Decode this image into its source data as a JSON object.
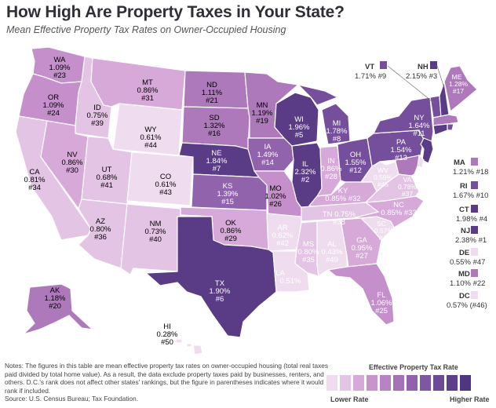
{
  "header": {
    "title": "How High Are Property Taxes in Your State?",
    "subtitle": "Mean Effective Property Tax Rates on Owner-Occupied Housing"
  },
  "colors": {
    "c1": "#efdcee",
    "c2": "#e4c4e4",
    "c3": "#d6a9d8",
    "c4": "#c48fca",
    "c5": "#ad79bb",
    "c6": "#9163ac",
    "c7": "#754f9b",
    "c8": "#5a3b85"
  },
  "states": {
    "WA": {
      "abbr": "WA",
      "rate": "1.09%",
      "rank": "#23",
      "level": 4
    },
    "OR": {
      "abbr": "OR",
      "rate": "1.09%",
      "rank": "#24",
      "level": 4
    },
    "CA": {
      "abbr": "CA",
      "rate": "0.81%",
      "rank": "#34",
      "level": 2
    },
    "ID": {
      "abbr": "ID",
      "rate": "0.75%",
      "rank": "#39",
      "level": 2
    },
    "NV": {
      "abbr": "NV",
      "rate": "0.86%",
      "rank": "#30",
      "level": 3
    },
    "MT": {
      "abbr": "MT",
      "rate": "0.86%",
      "rank": "#31",
      "level": 3
    },
    "WY": {
      "abbr": "WY",
      "rate": "0.61%",
      "rank": "#44",
      "level": 1
    },
    "UT": {
      "abbr": "UT",
      "rate": "0.68%",
      "rank": "#41",
      "level": 2
    },
    "AZ": {
      "abbr": "AZ",
      "rate": "0.80%",
      "rank": "#36",
      "level": 2
    },
    "CO": {
      "abbr": "CO",
      "rate": "0.61%",
      "rank": "#43",
      "level": 1
    },
    "NM": {
      "abbr": "NM",
      "rate": "0.73%",
      "rank": "#40",
      "level": 2
    },
    "ND": {
      "abbr": "ND",
      "rate": "1.11%",
      "rank": "#21",
      "level": 5
    },
    "SD": {
      "abbr": "SD",
      "rate": "1.32%",
      "rank": "#16",
      "level": 5
    },
    "NE": {
      "abbr": "NE",
      "rate": "1.84%",
      "rank": "#7",
      "level": 8
    },
    "KS": {
      "abbr": "KS",
      "rate": "1.39%",
      "rank": "#15",
      "level": 6
    },
    "OK": {
      "abbr": "OK",
      "rate": "0.86%",
      "rank": "#29",
      "level": 3
    },
    "TX": {
      "abbr": "TX",
      "rate": "1.90%",
      "rank": "#6",
      "level": 8
    },
    "MN": {
      "abbr": "MN",
      "rate": "1.19%",
      "rank": "#19",
      "level": 5
    },
    "IA": {
      "abbr": "IA",
      "rate": "1.49%",
      "rank": "#14",
      "level": 6
    },
    "MO": {
      "abbr": "MO",
      "rate": "1.02%",
      "rank": "#26",
      "level": 4
    },
    "AR": {
      "abbr": "AR",
      "rate": "0.62%",
      "rank": "#42",
      "level": 1
    },
    "LA": {
      "abbr": "LA",
      "rate": "0.51%",
      "rank": "#48",
      "level": 1
    },
    "WI": {
      "abbr": "WI",
      "rate": "1.96%",
      "rank": "#5",
      "level": 8
    },
    "IL": {
      "abbr": "IL",
      "rate": "2.32%",
      "rank": "#2",
      "level": 8
    },
    "MI": {
      "abbr": "MI",
      "rate": "1.78%",
      "rank": "#8",
      "level": 7
    },
    "IN": {
      "abbr": "IN",
      "rate": "0.86%",
      "rank": "#28",
      "level": 3
    },
    "OH": {
      "abbr": "OH",
      "rate": "1.55%",
      "rank": "#12",
      "level": 7
    },
    "KY": {
      "abbr": "KY",
      "rate": "0.85%",
      "rank": "#32",
      "level": 3
    },
    "TN": {
      "abbr": "TN",
      "rate": "0.75%",
      "rank": "#38",
      "level": 2
    },
    "MS": {
      "abbr": "MS",
      "rate": "0.80%",
      "rank": "#35",
      "level": 2
    },
    "AL": {
      "abbr": "AL",
      "rate": "0.43%",
      "rank": "#49",
      "level": 1
    },
    "GA": {
      "abbr": "GA",
      "rate": "0.95%",
      "rank": "#27",
      "level": 3
    },
    "FL": {
      "abbr": "FL",
      "rate": "1.06%",
      "rank": "#25",
      "level": 4
    },
    "SC": {
      "abbr": "SC",
      "rate": "0.57%",
      "rank": "#46",
      "level": 1
    },
    "NC": {
      "abbr": "NC",
      "rate": "0.85%",
      "rank": "#33",
      "level": 3
    },
    "VA": {
      "abbr": "VA",
      "rate": "0.78%",
      "rank": "#37",
      "level": 2
    },
    "WV": {
      "abbr": "WV",
      "rate": "0.59%",
      "rank": "#45",
      "level": 1
    },
    "PA": {
      "abbr": "PA",
      "rate": "1.54%",
      "rank": "#13",
      "level": 7
    },
    "NY": {
      "abbr": "NY",
      "rate": "1.64%",
      "rank": "#11",
      "level": 7
    },
    "ME": {
      "abbr": "ME",
      "rate": "1.28%",
      "rank": "#17",
      "level": 5
    },
    "AK": {
      "abbr": "AK",
      "rate": "1.18%",
      "rank": "#20",
      "level": 5
    },
    "HI": {
      "abbr": "HI",
      "rate": "0.28%",
      "rank": "#50",
      "level": 1
    },
    "VT": {
      "abbr": "VT",
      "rate": "1.71%",
      "rank": "#9",
      "level": 7
    },
    "NH": {
      "abbr": "NH",
      "rate": "2.15%",
      "rank": "#3",
      "level": 8
    },
    "MA": {
      "abbr": "MA",
      "rate": "1.21%",
      "rank": "#18",
      "level": 5
    },
    "RI": {
      "abbr": "RI",
      "rate": "1.67%",
      "rank": "#10",
      "level": 7
    },
    "CT": {
      "abbr": "CT",
      "rate": "1.98%",
      "rank": "#4",
      "level": 8
    },
    "NJ": {
      "abbr": "NJ",
      "rate": "2.38%",
      "rank": "#1",
      "level": 8
    },
    "DE": {
      "abbr": "DE",
      "rate": "0.55%",
      "rank": "#47",
      "level": 1
    },
    "MD": {
      "abbr": "MD",
      "rate": "1.10%",
      "rank": "#22",
      "level": 5
    },
    "DC": {
      "abbr": "DC",
      "rate": "0.57%",
      "rank": "(#46)",
      "level": 1
    }
  },
  "legend": {
    "title": "Effective Property Tax Rate",
    "low_label": "Lower Rate",
    "high_label": "Higher Rate"
  },
  "notes": {
    "text": "Notes: The figures in this table are mean effective property tax rates on owner-occupied housing (total real taxes paid divided by total home value). As a result, the data exclude property taxes paid by businesses, renters, and others. D.C.'s rank does not affect other states' rankings, but the figure in parentheses indicates where it would rank if included.",
    "source": "Source: U.S. Census Bureau; Tax Foundation."
  }
}
